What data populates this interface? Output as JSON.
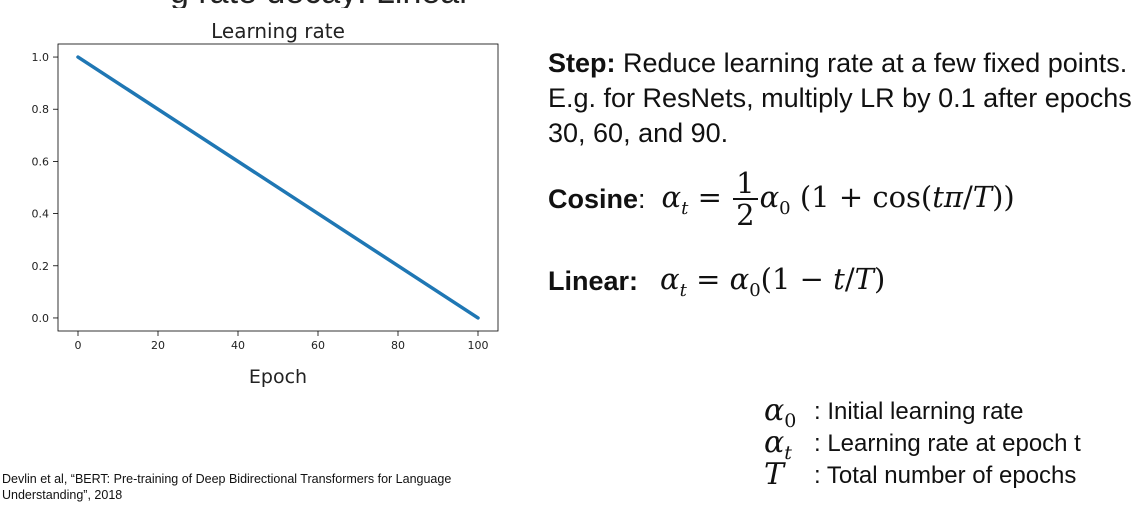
{
  "slide": {
    "top_fragment": "g rate decay: Linear"
  },
  "chart_data": {
    "type": "line",
    "title": "Learning rate",
    "xlabel": "Epoch",
    "ylabel": "",
    "xlim": [
      -5,
      105
    ],
    "ylim": [
      -0.05,
      1.05
    ],
    "x_ticks": [
      0,
      20,
      40,
      60,
      80,
      100
    ],
    "y_ticks": [
      0.0,
      0.2,
      0.4,
      0.6,
      0.8,
      1.0
    ],
    "x_tick_labels": [
      "0",
      "20",
      "40",
      "60",
      "80",
      "100"
    ],
    "y_tick_labels": [
      "0.0",
      "0.2",
      "0.4",
      "0.6",
      "0.8",
      "1.0"
    ],
    "series": [
      {
        "name": "learning rate",
        "color": "#1f77b4",
        "x": [
          0,
          100
        ],
        "y": [
          1.0,
          0.0
        ]
      }
    ]
  },
  "text": {
    "step_label": "Step:",
    "step_body": " Reduce learning rate at a few fixed points. E.g. for ResNets, multiply LR by 0.1 after epochs 30, 60, and 90.",
    "cosine_label": "Cosine",
    "cosine_colon": ":",
    "linear_label": "Linear:"
  },
  "legend": [
    {
      "symbol": "α",
      "sub": "0",
      "text": ": Initial learning rate"
    },
    {
      "symbol": "α",
      "sub": "t",
      "text": ": Learning rate at epoch t"
    },
    {
      "symbol": "T",
      "sub": "",
      "text": ": Total number of epochs"
    }
  ],
  "citation": "Devlin et al, “BERT: Pre-training of Deep Bidirectional Transformers for Language Understanding”, 2018"
}
